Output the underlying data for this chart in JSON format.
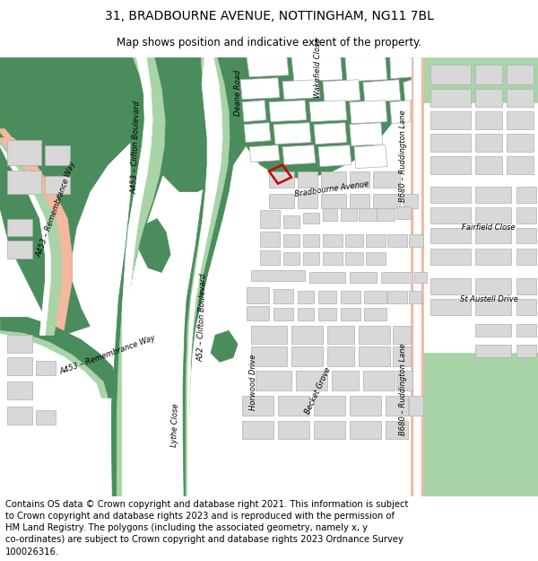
{
  "title": "31, BRADBOURNE AVENUE, NOTTINGHAM, NG11 7BL",
  "subtitle": "Map shows position and indicative extent of the property.",
  "footer": "Contains OS data © Crown copyright and database right 2021. This information is subject to Crown copyright and database rights 2023 and is reproduced with the permission of HM Land Registry. The polygons (including the associated geometry, namely x, y co-ordinates) are subject to Crown copyright and database rights 2023 Ordnance Survey 100026316.",
  "bg_color": "#ffffff",
  "map_bg": "#f2f2f2",
  "dark_green": "#4a8c5c",
  "light_green": "#a8d4a8",
  "pink": "#f2b8a0",
  "white": "#ffffff",
  "building_fill": "#d8d8d8",
  "building_edge": "#b0b0b0",
  "red": "#dd0000",
  "title_fontsize": 10,
  "subtitle_fontsize": 8.5,
  "footer_fontsize": 7.2,
  "label_fontsize": 6.0
}
